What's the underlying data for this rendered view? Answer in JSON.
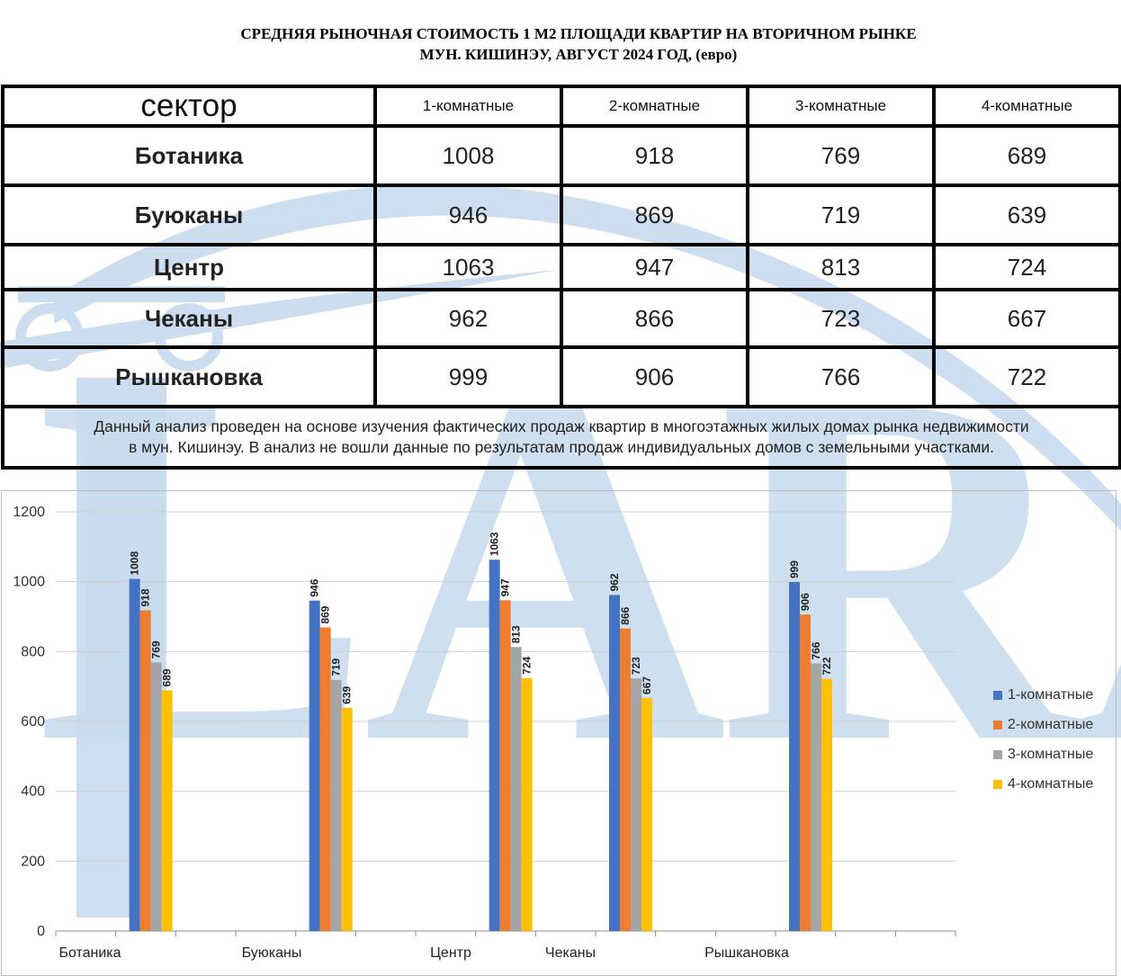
{
  "title_line1": "СРЕДНЯЯ  РЫНОЧНАЯ  СТОИМОСТЬ  1 М2  ПЛОЩАДИ  КВАРТИР НА ВТОРИЧНОМ РЫНКЕ",
  "title_line2": "МУН.  КИШИНЭУ,  АВГУСТ  2024 ГОД, (евро)",
  "watermark_text": "LARA",
  "table": {
    "header": [
      "сектор",
      "1-комнатные",
      "2-комнатные",
      "3-комнатные",
      "4-комнатные"
    ],
    "rows": [
      {
        "sector": "Ботаника",
        "values": [
          "1008",
          "918",
          "769",
          "689"
        ]
      },
      {
        "sector": "Буюканы",
        "values": [
          "946",
          "869",
          "719",
          "639"
        ]
      },
      {
        "sector": "Центр",
        "values": [
          "1063",
          "947",
          "813",
          "724"
        ]
      },
      {
        "sector": "Чеканы",
        "values": [
          "962",
          "866",
          "723",
          "667"
        ]
      },
      {
        "sector": "Рышкановка",
        "values": [
          "999",
          "906",
          "766",
          "722"
        ]
      }
    ],
    "note_line1": "Данный анализ проведен на основе изучения фактических продаж квартир в многоэтажных жилых домах рынка недвижимости",
    "note_line2": "в мун. Кишинэу. В анализ не вошли данные по результатам  продаж индивидуальных домов с земельными участками."
  },
  "colors": {
    "series1": "#4472C4",
    "series2": "#ED7D31",
    "series3": "#A5A5A5",
    "series4": "#FFC000",
    "watermark": "#c9dcee"
  },
  "chart_data": {
    "type": "bar",
    "categories": [
      "Ботаника",
      "Буюканы",
      "Центр",
      "Чеканы",
      "Рышкановка"
    ],
    "series": [
      {
        "name": "1-комнатные",
        "values": [
          1008,
          946,
          1063,
          962,
          999
        ]
      },
      {
        "name": "2-комнатные",
        "values": [
          918,
          869,
          947,
          866,
          906
        ]
      },
      {
        "name": "3-комнатные",
        "values": [
          769,
          719,
          813,
          723,
          766
        ]
      },
      {
        "name": "4-комнатные",
        "values": [
          689,
          639,
          724,
          667,
          722
        ]
      }
    ],
    "yticks": [
      "0",
      "200",
      "400",
      "600",
      "800",
      "1000",
      "1200"
    ],
    "ylim": [
      0,
      1200
    ],
    "grid": true,
    "data_labels": true,
    "legend_position": "right"
  }
}
